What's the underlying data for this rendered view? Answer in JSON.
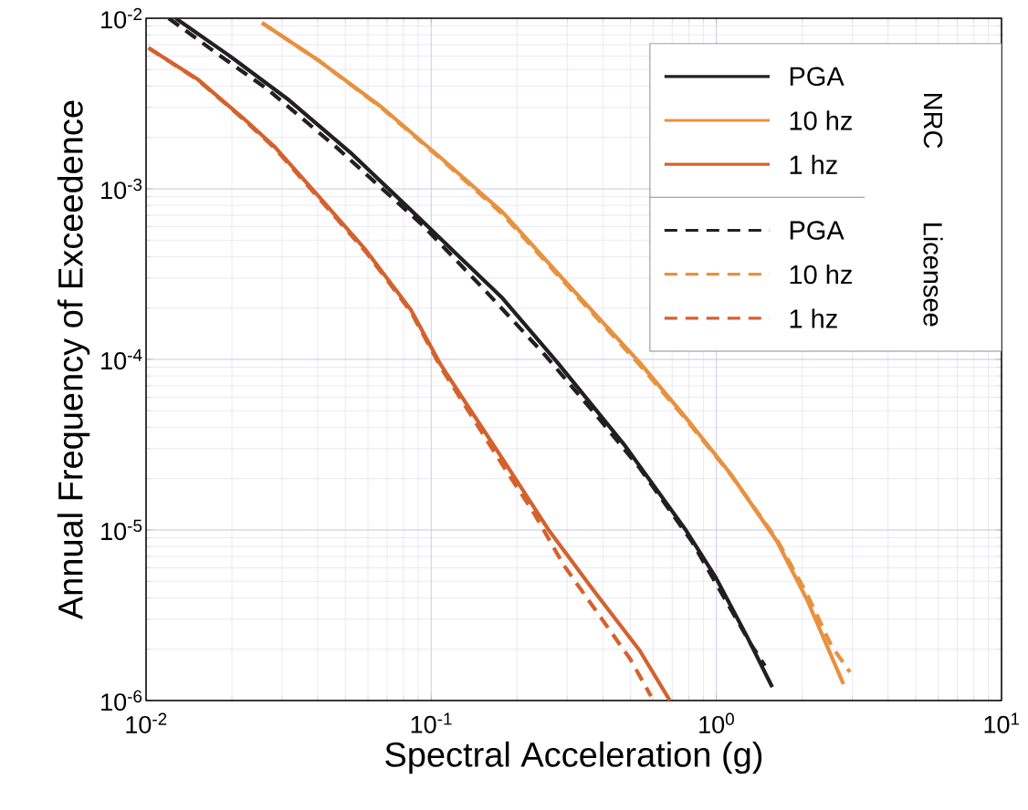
{
  "chart_data": {
    "type": "line",
    "xlabel": "Spectral Acceleration (g)",
    "ylabel": "Annual Frequency of Exceedence",
    "log": "xy",
    "grid": true,
    "legend": "top right",
    "xlim": [
      0.01,
      10
    ],
    "ylim": [
      1e-06,
      0.01
    ],
    "xticks": [
      {
        "value": 0.01,
        "label": "10$^{-2}$"
      },
      {
        "value": 0.1,
        "label": "10$^{-1}$"
      },
      {
        "value": 1,
        "label": "10$^{0}$"
      },
      {
        "value": 10,
        "label": "10$^{1}$"
      }
    ],
    "yticks": [
      {
        "value": 1e-06,
        "label": "10$^{-6}$"
      },
      {
        "value": 1e-05,
        "label": "10$^{-5}$"
      },
      {
        "value": 0.0001,
        "label": "10$^{-4}$"
      },
      {
        "value": 0.001,
        "label": "10$^{-3}$"
      },
      {
        "value": 0.01,
        "label": "10$^{-2}$"
      }
    ],
    "annotations": [
      "NRC",
      "Licensee"
    ],
    "series": [
      {
        "name": "PGA",
        "color": "#231f20",
        "line_style": "solid",
        "x": [
          0.0127,
          0.0194,
          0.0318,
          0.0519,
          0.0849,
          0.178,
          0.277,
          0.474,
          0.778,
          0.993,
          1.276,
          1.57
        ],
        "values": [
          0.01,
          0.0061,
          0.0033,
          0.00164,
          0.00075,
          0.000228,
          9.6e-05,
          3.18e-05,
          1.01e-05,
          5.3e-06,
          2.4e-06,
          1.2e-06
        ]
      },
      {
        "name": "10 hz",
        "color": "#e8913e",
        "line_style": "solid",
        "x": [
          0.0255,
          0.0406,
          0.0667,
          0.108,
          0.178,
          0.292,
          0.538,
          0.778,
          1.125,
          1.63,
          2.08,
          2.79
        ],
        "values": [
          0.0094,
          0.0056,
          0.00303,
          0.00152,
          0.00073,
          0.000292,
          9.6e-05,
          4.6e-05,
          2.12e-05,
          8.6e-06,
          3.9e-06,
          1.25e-06
        ]
      },
      {
        "name": "1 hz",
        "color": "#d4622e",
        "line_style": "solid",
        "x": [
          0.0102,
          0.0152,
          0.022,
          0.0281,
          0.0406,
          0.0588,
          0.0849,
          0.108,
          0.178,
          0.257,
          0.372,
          0.538,
          0.687
        ],
        "values": [
          0.0067,
          0.00438,
          0.00258,
          0.00178,
          0.00089,
          0.00044,
          0.000195,
          9.3e-05,
          2.61e-05,
          1.01e-05,
          4.4e-06,
          1.97e-06,
          1e-06
        ]
      },
      {
        "name": "PGA",
        "color": "#231f20",
        "line_style": "dashed",
        "x": [
          0.012,
          0.018,
          0.0267,
          0.046,
          0.0935,
          0.153,
          0.252,
          0.392,
          0.538,
          0.819,
          1.33,
          1.48
        ],
        "values": [
          0.01,
          0.0061,
          0.00383,
          0.00178,
          0.00061,
          0.000258,
          0.000105,
          4.4e-05,
          2.31e-05,
          8.6e-06,
          2.1e-06,
          1.6e-06
        ]
      },
      {
        "name": "10 hz",
        "color": "#e8913e",
        "line_style": "dashed",
        "x": [
          0.0255,
          0.0406,
          0.0667,
          0.108,
          0.178,
          0.292,
          0.538,
          0.778,
          1.125,
          1.63,
          2.08,
          2.53,
          2.94
        ],
        "values": [
          0.0094,
          0.0056,
          0.003,
          0.0015,
          0.00071,
          0.000285,
          9.3e-05,
          4.5e-05,
          2.1e-05,
          8.8e-06,
          4.2e-06,
          2.1e-06,
          1.47e-06
        ]
      },
      {
        "name": "1 hz",
        "color": "#d4622e",
        "line_style": "dashed",
        "x": [
          0.0102,
          0.0152,
          0.022,
          0.0281,
          0.0406,
          0.0588,
          0.0849,
          0.108,
          0.178,
          0.227,
          0.292,
          0.372,
          0.5,
          0.59
        ],
        "values": [
          0.0067,
          0.00435,
          0.00255,
          0.00175,
          0.00087,
          0.00043,
          0.00019,
          9e-05,
          2.4e-05,
          1.29e-05,
          6.2e-06,
          3.5e-06,
          1.74e-06,
          1.06e-06
        ]
      }
    ]
  }
}
